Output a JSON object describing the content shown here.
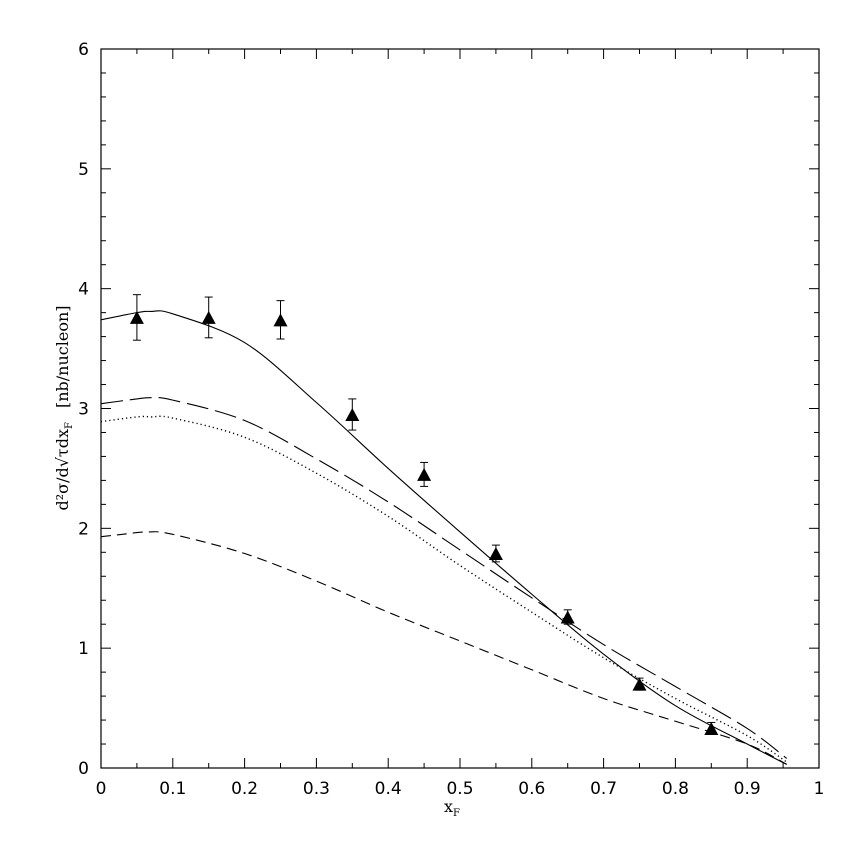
{
  "chart_data": {
    "type": "line",
    "title": "",
    "xlabel": "x",
    "xlabel_sub": "F",
    "ylabel": "d²σ/d√τdx",
    "ylabel_sub": "F",
    "ylabel_unit": "[nb/nucleon]",
    "xlim": [
      0,
      1
    ],
    "ylim": [
      0,
      6
    ],
    "x_ticks": [
      "0",
      "0.1",
      "0.2",
      "0.3",
      "0.4",
      "0.5",
      "0.6",
      "0.7",
      "0.8",
      "0.9",
      "1"
    ],
    "y_ticks": [
      "0",
      "1",
      "2",
      "3",
      "4",
      "5",
      "6"
    ],
    "grid": false,
    "series": [
      {
        "style": "solid",
        "x": [
          0,
          0.05,
          0.07,
          0.1,
          0.2,
          0.3,
          0.4,
          0.5,
          0.6,
          0.7,
          0.8,
          0.9,
          0.955
        ],
        "y": [
          3.74,
          3.8,
          3.81,
          3.79,
          3.55,
          3.05,
          2.5,
          1.97,
          1.45,
          0.95,
          0.52,
          0.2,
          0.03
        ]
      },
      {
        "style": "long-dash",
        "x": [
          0,
          0.05,
          0.07,
          0.1,
          0.2,
          0.3,
          0.4,
          0.5,
          0.6,
          0.7,
          0.8,
          0.9,
          0.955
        ],
        "y": [
          3.04,
          3.08,
          3.09,
          3.07,
          2.9,
          2.58,
          2.22,
          1.82,
          1.42,
          1.03,
          0.68,
          0.33,
          0.08
        ]
      },
      {
        "style": "dotted",
        "x": [
          0,
          0.05,
          0.07,
          0.1,
          0.2,
          0.3,
          0.4,
          0.5,
          0.6,
          0.7,
          0.8,
          0.9,
          0.955
        ],
        "y": [
          2.89,
          2.93,
          2.93,
          2.92,
          2.76,
          2.46,
          2.1,
          1.69,
          1.3,
          0.92,
          0.58,
          0.27,
          0.05
        ]
      },
      {
        "style": "dashed",
        "x": [
          0,
          0.03,
          0.065,
          0.1,
          0.2,
          0.3,
          0.4,
          0.5,
          0.6,
          0.7,
          0.8,
          0.9,
          0.955
        ],
        "y": [
          1.93,
          1.95,
          1.97,
          1.95,
          1.79,
          1.56,
          1.3,
          1.06,
          0.82,
          0.58,
          0.39,
          0.2,
          0.03
        ]
      }
    ],
    "data_points": {
      "marker": "triangle",
      "x": [
        0.05,
        0.15,
        0.25,
        0.35,
        0.45,
        0.55,
        0.65,
        0.75,
        0.85
      ],
      "y": [
        3.76,
        3.76,
        3.74,
        2.95,
        2.45,
        1.79,
        1.26,
        0.7,
        0.33
      ],
      "err": [
        0.19,
        0.17,
        0.16,
        0.13,
        0.1,
        0.07,
        0.06,
        0.05,
        0.05
      ]
    }
  }
}
